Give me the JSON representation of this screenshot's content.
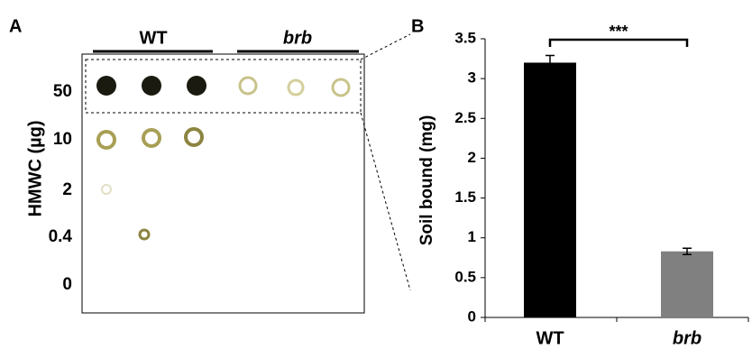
{
  "panel_labels": [
    "A",
    "B"
  ],
  "panel_a": {
    "groups": [
      "WT",
      "brb"
    ],
    "row_labels": [
      "50",
      "10",
      "2",
      "0.4",
      "0"
    ],
    "y_label": "HMWC (µg)"
  },
  "chart_data": {
    "type": "bar",
    "categories": [
      "WT",
      "brb"
    ],
    "values": [
      3.2,
      0.83
    ],
    "errors": [
      0.09,
      0.04
    ],
    "colors": [
      "#000000",
      "#808080"
    ],
    "ylabel": "Soil bound (mg)",
    "annotation": "***",
    "ylim": [
      0,
      3.5
    ],
    "yticks": [
      0,
      0.5,
      1,
      1.5,
      2,
      2.5,
      3,
      3.5
    ]
  }
}
